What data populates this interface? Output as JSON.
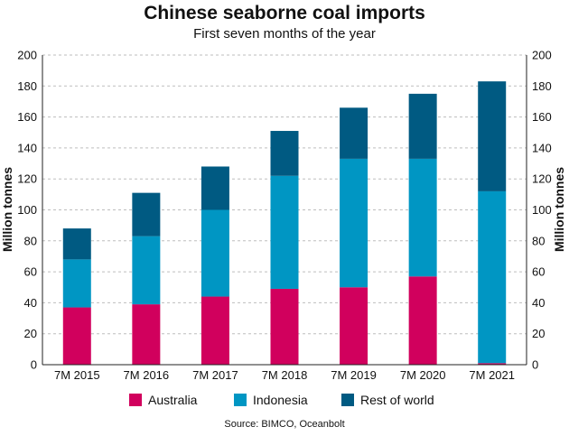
{
  "chart_data": {
    "type": "bar",
    "stacked": true,
    "title": "Chinese seaborne coal imports",
    "subtitle": "First seven months of the year",
    "xlabel": "",
    "ylabel": "Million tonnes",
    "ylabel_right": "Million tonnes",
    "ylim": [
      0,
      200
    ],
    "yticks": [
      0,
      20,
      40,
      60,
      80,
      100,
      120,
      140,
      160,
      180,
      200
    ],
    "grid": true,
    "legend_position": "bottom",
    "categories": [
      "7M 2015",
      "7M 2016",
      "7M 2017",
      "7M 2018",
      "7M 2019",
      "7M 2020",
      "7M 2021"
    ],
    "series": [
      {
        "name": "Australia",
        "color": "#d1005d",
        "values": [
          37,
          39,
          44,
          49,
          50,
          57,
          1
        ]
      },
      {
        "name": "Indonesia",
        "color": "#0096c3",
        "values": [
          31,
          44,
          56,
          73,
          83,
          76,
          111
        ]
      },
      {
        "name": "Rest of world",
        "color": "#005a82",
        "values": [
          20,
          28,
          28,
          29,
          33,
          42,
          71
        ]
      }
    ],
    "source": "Source: BIMCO, Oceanbolt"
  }
}
